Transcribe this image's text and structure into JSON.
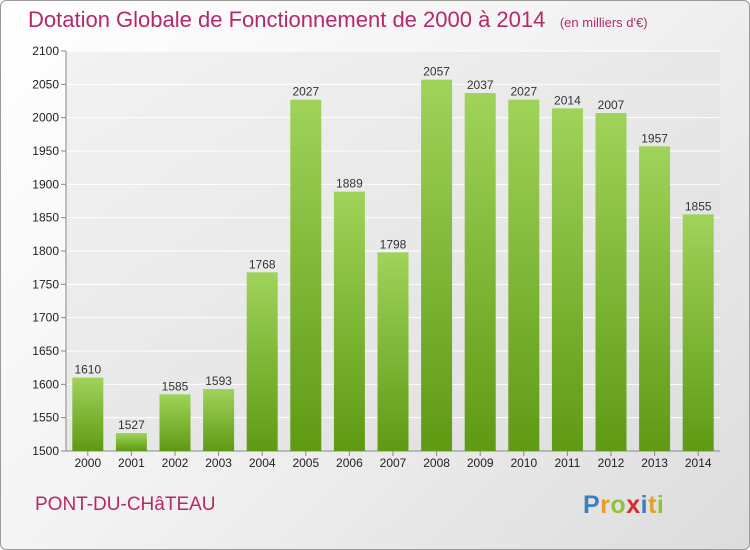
{
  "header": {
    "title": "Dotation Globale de Fonctionnement de 2000 à 2014",
    "unit": "(en milliers d'€)"
  },
  "footer": {
    "commune": "PONT-DU-CHâTEAU",
    "logo_letters": [
      {
        "ch": "P",
        "color": "#3a7fc1"
      },
      {
        "ch": "r",
        "color": "#e8a020"
      },
      {
        "ch": "o",
        "color": "#8cc43c"
      },
      {
        "ch": "x",
        "color": "#d9282e"
      },
      {
        "ch": "i",
        "color": "#3a7fc1"
      },
      {
        "ch": "t",
        "color": "#e8a020"
      },
      {
        "ch": "i",
        "color": "#8cc43c"
      }
    ]
  },
  "colors": {
    "title": "#b5286b",
    "bar_top": "#9fd35a",
    "bar_bottom": "#5f9a14",
    "grid": "#ffffff",
    "plot_bg": "#e6e6e6"
  },
  "chart_data": {
    "type": "bar",
    "title": "Dotation Globale de Fonctionnement de 2000 à 2014",
    "subtitle": "(en milliers d'€)",
    "xlabel": "",
    "ylabel": "",
    "categories": [
      "2000",
      "2001",
      "2002",
      "2003",
      "2004",
      "2005",
      "2006",
      "2007",
      "2008",
      "2009",
      "2010",
      "2011",
      "2012",
      "2013",
      "2014"
    ],
    "values": [
      1610,
      1527,
      1585,
      1593,
      1768,
      2027,
      1889,
      1798,
      2057,
      2037,
      2027,
      2014,
      2007,
      1957,
      1855
    ],
    "ylim": [
      1500,
      2100
    ],
    "yticks": [
      1500,
      1550,
      1600,
      1650,
      1700,
      1750,
      1800,
      1850,
      1900,
      1950,
      2000,
      2050,
      2100
    ],
    "grid": true,
    "data_labels": true,
    "legend": "none"
  }
}
